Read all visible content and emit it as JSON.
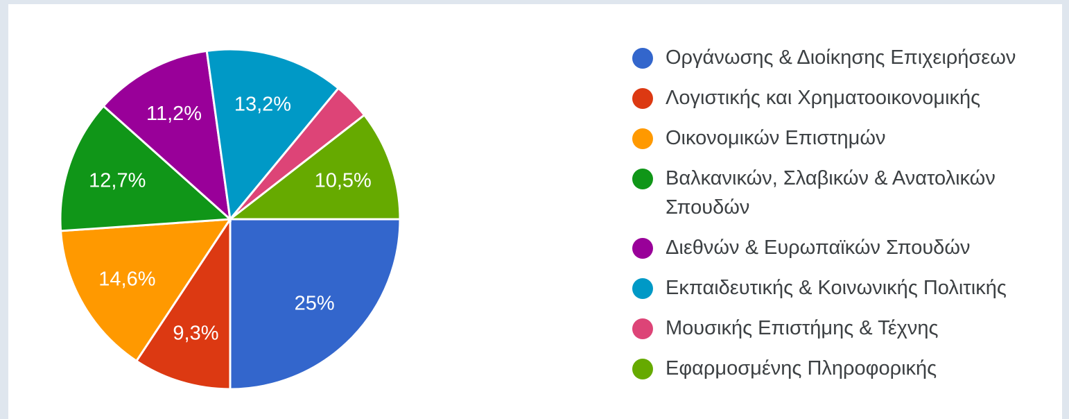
{
  "chart_data": {
    "type": "pie",
    "slices": [
      {
        "label": "Οργάνωσης & Διοίκησης Επιχειρήσεων",
        "value": 25,
        "value_label": "25%",
        "color": "#3366cc"
      },
      {
        "label": "Λογιστικής και Χρηματοοικονομικής",
        "value": 9.3,
        "value_label": "9,3%",
        "color": "#dc3912"
      },
      {
        "label": "Οικονομικών Επιστημών",
        "value": 14.6,
        "value_label": "14,6%",
        "color": "#ff9900"
      },
      {
        "label": "Βαλκανικών, Σλαβικών & Ανατολικών Σπουδών",
        "value": 12.7,
        "value_label": "12,7%",
        "color": "#109618"
      },
      {
        "label": "Διεθνών & Ευρωπαϊκών Σπουδών",
        "value": 11.2,
        "value_label": "11,2%",
        "color": "#990099"
      },
      {
        "label": "Εκπαιδευτικής & Κοινωνικής Πολιτικής",
        "value": 13.2,
        "value_label": "13,2%",
        "color": "#0099c6"
      },
      {
        "label": "Μουσικής Επιστήμης & Τέχνης",
        "value": 3.5,
        "value_label": "",
        "color": "#dd4477"
      },
      {
        "label": "Εφαρμοσμένης Πληροφορικής",
        "value": 10.5,
        "value_label": "10,5%",
        "color": "#66aa00"
      }
    ],
    "legend_position": "right"
  }
}
